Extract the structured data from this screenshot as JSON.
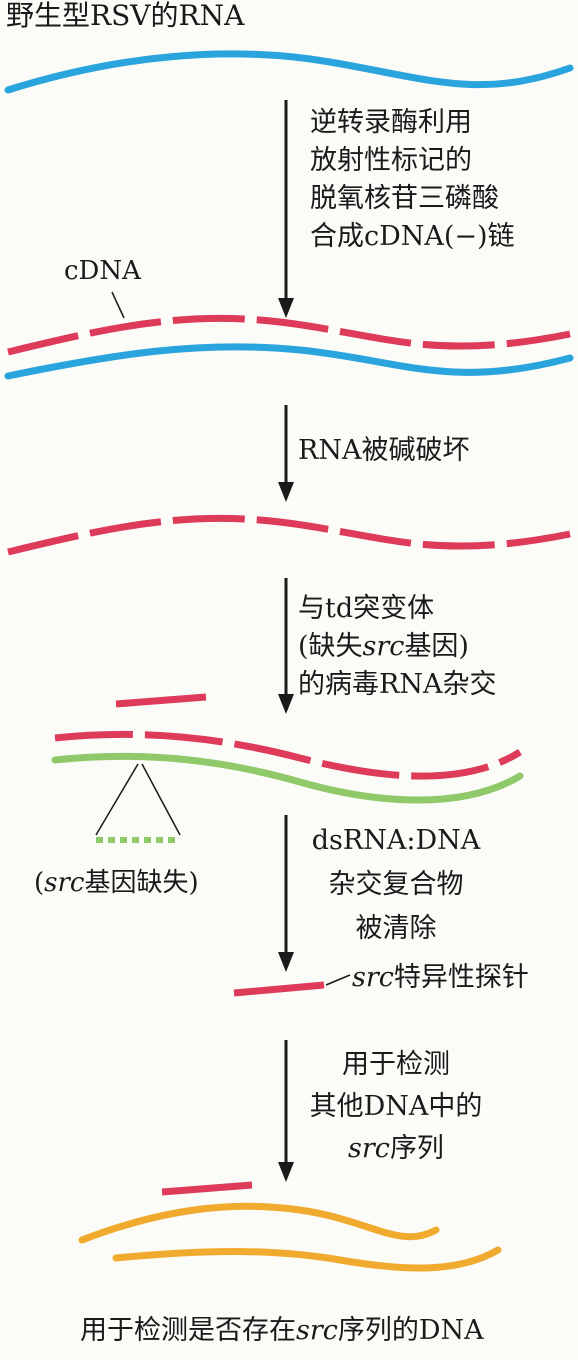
{
  "title": "野生型RSV的RNA",
  "steps": {
    "s1": [
      "逆转录酶利用",
      "放射性标记的",
      "脱氧核苷三磷酸",
      "合成cDNA(−)链"
    ],
    "s2": [
      "RNA被碱破坏"
    ],
    "s3": {
      "line1": "与td突变体",
      "line2_pre": "(缺失",
      "line2_ital": "src",
      "line2_post": "基因)",
      "line3": "的病毒RNA杂交"
    },
    "s4": [
      "dsRNA:DNA",
      "杂交复合物",
      "被清除"
    ],
    "s5": {
      "line1": "用于检测",
      "line2": "其他DNA中的",
      "line3_ital": "src",
      "line3_post": "序列"
    }
  },
  "labels": {
    "cdna": "cDNA",
    "deletion_pre": "(",
    "deletion_ital": "src",
    "deletion_post": "基因缺失)",
    "probe_ital": "src",
    "probe_post": "特异性探针"
  },
  "caption": {
    "pre": "用于检测是否存在",
    "ital": "src",
    "post": "序列的DNA"
  },
  "colors": {
    "rna": "#2aa4dd",
    "cdna": "#dd3b59",
    "td_rna": "#8fc96a",
    "dna": "#f0ab2e",
    "arrow": "#1a1a1a"
  }
}
